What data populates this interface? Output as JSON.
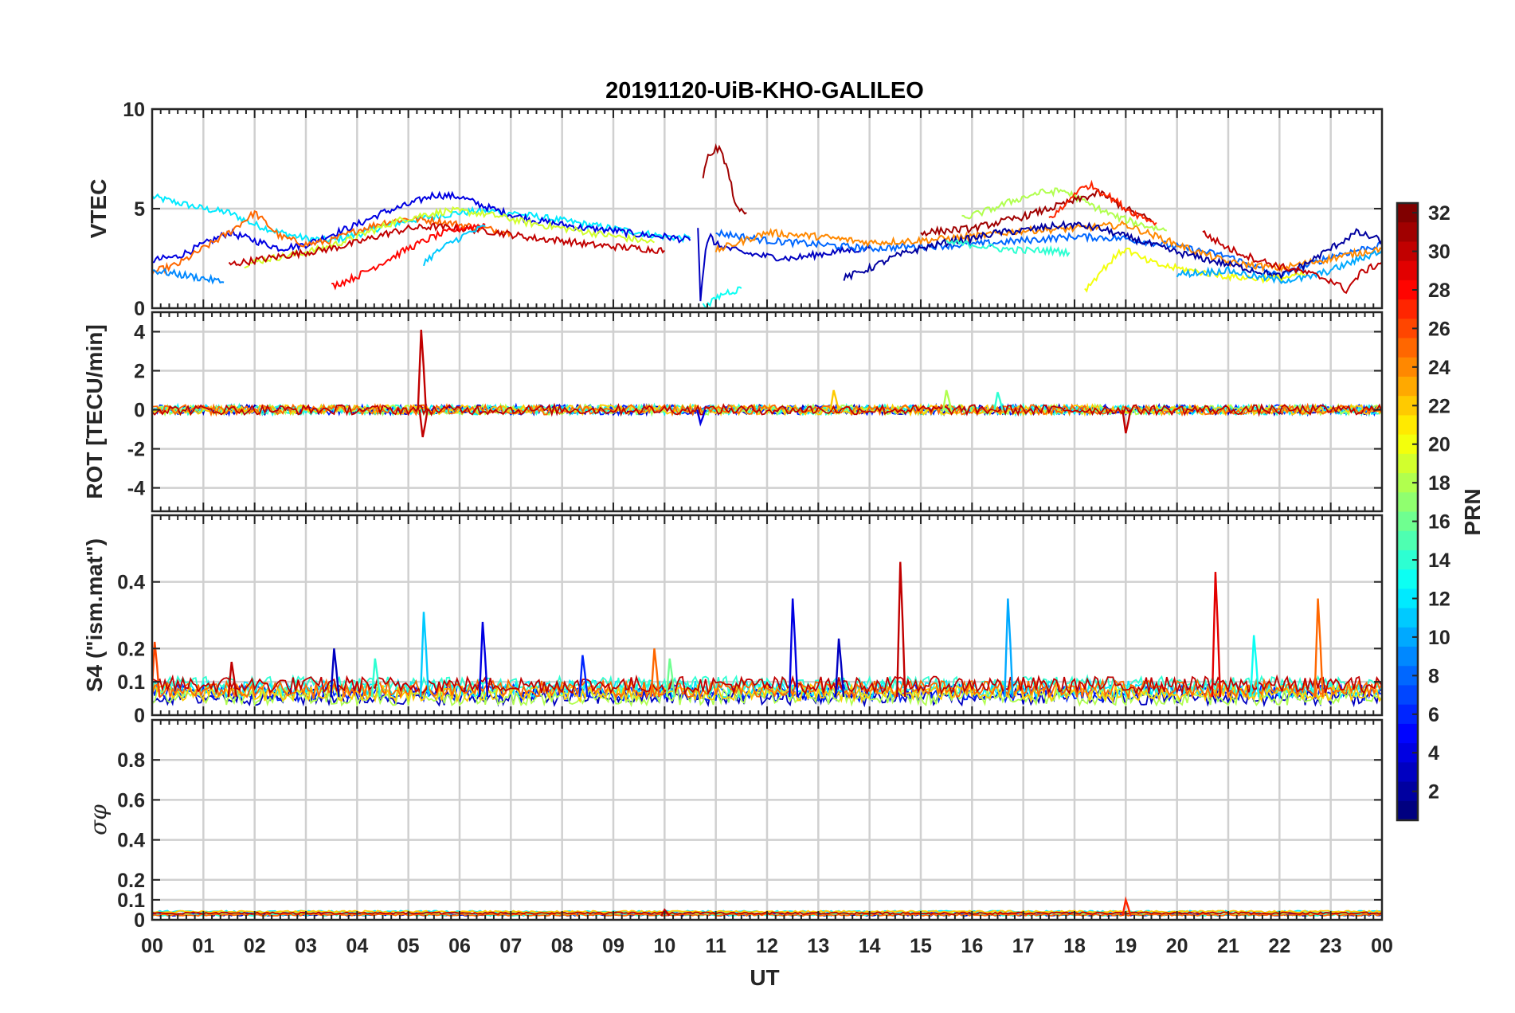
{
  "chart_data": {
    "type": "line",
    "title": "20191120-UiB-KHO-GALILEO",
    "xlabel": "UT",
    "x_tick_labels": [
      "00",
      "01",
      "02",
      "03",
      "04",
      "05",
      "06",
      "07",
      "08",
      "09",
      "10",
      "11",
      "12",
      "13",
      "14",
      "15",
      "16",
      "17",
      "18",
      "19",
      "20",
      "21",
      "22",
      "23",
      "00"
    ],
    "xlim": [
      0,
      24
    ],
    "grid": true,
    "colormap": "jet",
    "colorbar": {
      "label": "PRN",
      "range": [
        1,
        32
      ],
      "tick_labels": [
        "2",
        "4",
        "6",
        "8",
        "10",
        "12",
        "14",
        "16",
        "18",
        "20",
        "22",
        "24",
        "26",
        "28",
        "30",
        "32"
      ],
      "tick_values": [
        2,
        4,
        6,
        8,
        10,
        12,
        14,
        16,
        18,
        20,
        22,
        24,
        26,
        28,
        30,
        32
      ]
    },
    "panels": [
      {
        "ylabel": "VTEC",
        "ylim": [
          0,
          10
        ],
        "y_ticks": [
          0,
          5,
          10
        ],
        "y_tick_labels": [
          "0",
          "5",
          "10"
        ],
        "series": [
          {
            "prn": 12,
            "x": [
              0.0,
              0.5,
              1.0,
              1.5,
              2.0,
              2.5,
              3.0,
              3.5,
              4.0,
              4.5,
              5.0,
              5.5,
              6.0,
              6.5,
              7.0,
              7.5,
              8.0,
              8.5,
              9.0,
              9.5,
              10.0,
              10.5
            ],
            "y": [
              5.6,
              5.3,
              5.0,
              4.8,
              4.2,
              3.8,
              3.5,
              3.4,
              3.7,
              4.1,
              4.4,
              4.6,
              4.8,
              4.9,
              4.8,
              4.6,
              4.4,
              4.2,
              4.0,
              3.8,
              3.6,
              3.5
            ]
          },
          {
            "prn": 4,
            "x": [
              0.0,
              0.5,
              1.0,
              1.5,
              2.0,
              2.5,
              3.0,
              3.5,
              4.0,
              4.5,
              5.0,
              5.5,
              6.0,
              6.5,
              7.0,
              7.5,
              8.0,
              8.5,
              9.0,
              9.5,
              10.0,
              10.5
            ],
            "y": [
              2.4,
              2.6,
              3.2,
              3.8,
              3.4,
              3.0,
              3.2,
              3.7,
              4.2,
              4.8,
              5.2,
              5.7,
              5.6,
              5.1,
              4.7,
              4.4,
              4.2,
              4.0,
              3.9,
              3.7,
              3.6,
              3.4
            ]
          },
          {
            "prn": 25,
            "x": [
              0.0,
              0.5,
              1.0,
              1.5,
              2.0,
              2.5,
              3.0,
              3.5,
              4.0,
              4.5,
              5.0,
              5.5,
              6.0,
              6.5,
              7.0
            ],
            "y": [
              1.8,
              2.2,
              3.0,
              3.8,
              4.8,
              3.6,
              3.2,
              3.4,
              3.9,
              4.3,
              4.5,
              4.4,
              4.2,
              4.0,
              3.8
            ]
          },
          {
            "prn": 19,
            "x": [
              1.8,
              2.3,
              2.8,
              3.3,
              3.8,
              4.3,
              4.8,
              5.3,
              5.8,
              6.3,
              6.8,
              7.3,
              7.8,
              8.3,
              8.8,
              9.3,
              9.8
            ],
            "y": [
              2.2,
              2.5,
              2.7,
              3.0,
              3.4,
              3.9,
              4.4,
              4.7,
              4.9,
              4.8,
              4.6,
              4.3,
              4.1,
              3.9,
              3.7,
              3.5,
              3.3
            ]
          },
          {
            "prn": 30,
            "x": [
              1.5,
              2.0,
              2.5,
              3.0,
              3.5,
              4.0,
              4.5,
              5.0,
              5.5,
              6.0,
              6.5,
              7.0,
              7.5,
              8.0,
              8.5,
              9.0,
              9.5,
              10.0
            ],
            "y": [
              2.2,
              2.4,
              2.6,
              2.8,
              3.0,
              3.3,
              3.7,
              4.0,
              4.1,
              4.0,
              3.9,
              3.7,
              3.5,
              3.4,
              3.2,
              3.1,
              3.0,
              2.9
            ]
          },
          {
            "prn": 28,
            "x": [
              3.5,
              4.0,
              4.5,
              5.0,
              5.5,
              6.0,
              6.5
            ],
            "y": [
              1.1,
              1.6,
              2.3,
              3.0,
              3.6,
              4.0,
              4.2
            ]
          },
          {
            "prn": 9,
            "x": [
              0.0,
              0.5,
              1.0,
              1.4
            ],
            "y": [
              1.9,
              1.7,
              1.5,
              1.3
            ]
          },
          {
            "prn": 11,
            "x": [
              5.3,
              5.6,
              5.9,
              6.2,
              6.5
            ],
            "y": [
              2.3,
              2.9,
              3.4,
              3.8,
              4.1
            ]
          },
          {
            "prn": 31,
            "x": [
              10.75,
              10.85,
              11.0,
              11.1,
              11.2,
              11.3,
              11.4,
              11.5,
              11.6
            ],
            "y": [
              6.6,
              7.6,
              8.0,
              7.9,
              7.2,
              6.2,
              5.0,
              4.9,
              4.8
            ]
          },
          {
            "prn": 3,
            "x": [
              10.65,
              10.7,
              10.8,
              10.9,
              11.0,
              11.5,
              12.0,
              12.5,
              13.0,
              13.5,
              14.0
            ],
            "y": [
              4.2,
              0.5,
              3.0,
              3.6,
              3.2,
              2.8,
              2.6,
              2.5,
              2.7,
              2.9,
              3.0
            ]
          },
          {
            "prn": 13,
            "x": [
              10.75,
              10.85,
              11.0,
              11.2,
              11.4,
              11.5
            ],
            "y": [
              0.3,
              0.1,
              0.5,
              0.8,
              0.9,
              1.0
            ]
          },
          {
            "prn": 8,
            "x": [
              11.0,
              12.0,
              13.0,
              14.0,
              15.0,
              16.0,
              17.0,
              18.0,
              19.0,
              20.0,
              21.0,
              22.0,
              23.0,
              24.0
            ],
            "y": [
              3.8,
              3.4,
              3.2,
              3.0,
              3.1,
              3.2,
              3.4,
              3.6,
              3.5,
              3.1,
              2.6,
              1.6,
              2.6,
              3.2
            ]
          },
          {
            "prn": 24,
            "x": [
              11.0,
              12.0,
              13.0,
              14.0,
              15.0,
              16.0,
              17.0,
              18.0,
              19.0,
              20.0,
              21.0,
              22.0,
              23.0,
              24.0
            ],
            "y": [
              2.9,
              3.8,
              3.6,
              3.3,
              3.4,
              3.6,
              3.9,
              4.0,
              4.2,
              3.2,
              2.3,
              2.0,
              2.5,
              3.0
            ]
          },
          {
            "prn": 2,
            "x": [
              13.5,
              14.0,
              14.5,
              15.0,
              15.5,
              16.0,
              16.5,
              17.0,
              17.5,
              18.0,
              18.5,
              19.0,
              19.5,
              20.0,
              20.5,
              21.0,
              21.5,
              22.0,
              22.5,
              23.0,
              23.5,
              24.0
            ],
            "y": [
              1.5,
              2.0,
              2.6,
              3.0,
              3.3,
              3.5,
              3.8,
              3.9,
              4.1,
              4.2,
              4.0,
              3.6,
              3.2,
              2.8,
              2.5,
              2.2,
              1.9,
              1.6,
              2.2,
              3.0,
              3.8,
              3.4
            ]
          },
          {
            "prn": 18,
            "x": [
              15.8,
              16.3,
              16.8,
              17.3,
              17.8,
              18.3,
              18.8,
              19.3,
              19.8
            ],
            "y": [
              4.5,
              4.9,
              5.4,
              5.8,
              5.9,
              5.2,
              4.6,
              4.2,
              3.9
            ]
          },
          {
            "prn": 31,
            "x": [
              15.0,
              15.5,
              16.0,
              16.5,
              17.0,
              17.5,
              18.0,
              18.5,
              19.0,
              19.5
            ],
            "y": [
              3.8,
              3.9,
              4.0,
              4.3,
              4.6,
              5.0,
              5.4,
              5.8,
              5.0,
              4.4
            ]
          },
          {
            "prn": 27,
            "x": [
              17.5,
              17.8,
              18.0,
              18.3,
              18.5,
              18.8,
              19.0,
              19.3,
              19.6
            ],
            "y": [
              4.5,
              5.1,
              5.8,
              6.2,
              5.9,
              5.4,
              5.0,
              4.6,
              4.3
            ]
          },
          {
            "prn": 20,
            "x": [
              18.2,
              18.5,
              18.8,
              19.0,
              19.3,
              19.6,
              20.0,
              20.5,
              21.0,
              21.5,
              22.0,
              22.5
            ],
            "y": [
              0.9,
              1.8,
              2.6,
              3.0,
              2.5,
              2.2,
              2.0,
              1.8,
              1.6,
              1.5,
              1.5,
              1.7
            ]
          },
          {
            "prn": 14,
            "x": [
              15.5,
              16.0,
              16.5,
              17.0,
              17.5,
              17.9
            ],
            "y": [
              3.3,
              3.2,
              3.0,
              2.9,
              2.9,
              2.8
            ]
          },
          {
            "prn": 10,
            "x": [
              20.0,
              20.5,
              21.0,
              21.5,
              22.0,
              22.5,
              23.0,
              23.5,
              24.0
            ],
            "y": [
              1.7,
              1.8,
              1.9,
              1.6,
              1.4,
              1.5,
              1.9,
              2.4,
              2.9
            ]
          },
          {
            "prn": 30,
            "x": [
              20.5,
              21.0,
              21.5,
              22.0,
              22.5,
              23.0,
              23.3,
              23.6,
              24.0
            ],
            "y": [
              3.8,
              3.0,
              2.5,
              2.1,
              1.8,
              1.4,
              0.9,
              1.8,
              2.3
            ]
          }
        ]
      },
      {
        "ylabel": "ROT [TECU/min]",
        "ylim": [
          -5.2,
          5
        ],
        "y_ticks": [
          -4,
          -2,
          0,
          2,
          4
        ],
        "y_tick_labels": [
          "-4",
          "-2",
          "0",
          "2",
          "4"
        ],
        "spikes": [
          {
            "prn": 30,
            "x": 5.25,
            "y": 4.1
          },
          {
            "prn": 30,
            "x": 5.28,
            "y": -1.4
          },
          {
            "prn": 22,
            "x": 13.3,
            "y": 1.0
          },
          {
            "prn": 18,
            "x": 15.5,
            "y": 1.0
          },
          {
            "prn": 14,
            "x": 16.5,
            "y": 0.9
          },
          {
            "prn": 30,
            "x": 19.0,
            "y": -1.2
          },
          {
            "prn": 4,
            "x": 10.7,
            "y": -0.7
          }
        ]
      },
      {
        "ylabel": "S4 (\"ism.mat\")",
        "ylim": [
          0,
          0.6
        ],
        "y_ticks": [
          0,
          0.1,
          0.2,
          0.4
        ],
        "y_tick_labels": [
          "0",
          "0.1",
          "0.2",
          "0.4"
        ],
        "spikes": [
          {
            "prn": 26,
            "x": 0.05,
            "y": 0.22
          },
          {
            "prn": 30,
            "x": 1.55,
            "y": 0.16
          },
          {
            "prn": 3,
            "x": 3.55,
            "y": 0.2
          },
          {
            "prn": 14,
            "x": 4.35,
            "y": 0.17
          },
          {
            "prn": 11,
            "x": 5.3,
            "y": 0.31
          },
          {
            "prn": 4,
            "x": 6.45,
            "y": 0.28
          },
          {
            "prn": 6,
            "x": 8.4,
            "y": 0.18
          },
          {
            "prn": 25,
            "x": 9.8,
            "y": 0.2
          },
          {
            "prn": 16,
            "x": 10.1,
            "y": 0.17
          },
          {
            "prn": 4,
            "x": 12.5,
            "y": 0.35
          },
          {
            "prn": 3,
            "x": 13.4,
            "y": 0.23
          },
          {
            "prn": 30,
            "x": 14.6,
            "y": 0.46
          },
          {
            "prn": 10,
            "x": 16.7,
            "y": 0.35
          },
          {
            "prn": 29,
            "x": 20.75,
            "y": 0.43
          },
          {
            "prn": 13,
            "x": 21.5,
            "y": 0.24
          },
          {
            "prn": 25,
            "x": 22.75,
            "y": 0.35
          }
        ]
      },
      {
        "ylabel": "σφ",
        "ylim": [
          0,
          1
        ],
        "y_ticks": [
          0,
          0.1,
          0.2,
          0.4,
          0.6,
          0.8
        ],
        "y_tick_labels": [
          "0",
          "0.1",
          "0.2",
          "0.4",
          "0.6",
          "0.8"
        ],
        "spikes": [
          {
            "prn": 27,
            "x": 19.0,
            "y": 0.1
          },
          {
            "prn": 30,
            "x": 10.0,
            "y": 0.05
          }
        ]
      }
    ]
  }
}
